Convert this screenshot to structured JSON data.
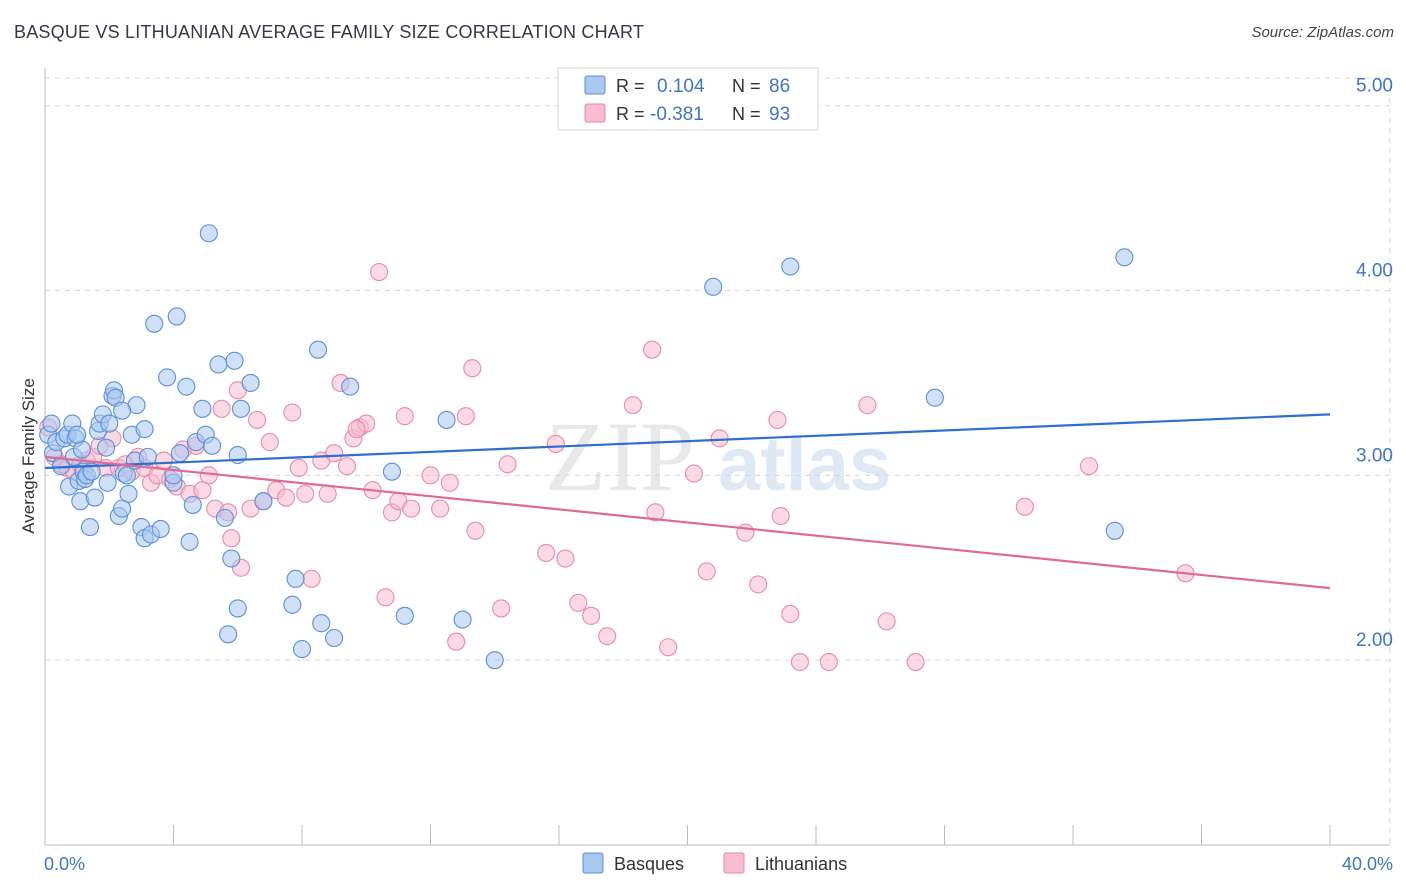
{
  "title": "BASQUE VS LITHUANIAN AVERAGE FAMILY SIZE CORRELATION CHART",
  "source": "Source: ZipAtlas.com",
  "watermark": {
    "zip": "ZIP",
    "atlas": "atlas"
  },
  "colors": {
    "basque_fill": "#a9c8f0",
    "basque_stroke": "#5b8fd6",
    "basque_line": "#2f6fcb",
    "lith_fill": "#f7bcd0",
    "lith_stroke": "#e88aab",
    "lith_line": "#e06a96",
    "tick_text": "#3f74c8",
    "grid": "#d8d8d8"
  },
  "legend": {
    "r_label": "R =",
    "n_label": "N =",
    "rows": [
      {
        "r": "0.104",
        "n": "86"
      },
      {
        "r": "-0.381",
        "n": "93"
      }
    ]
  },
  "chart_data": {
    "type": "scatter",
    "title": "BASQUE VS LITHUANIAN AVERAGE FAMILY SIZE CORRELATION CHART",
    "xlabel": "",
    "ylabel": "Average Family Size",
    "xlim": [
      0,
      40
    ],
    "ylim": [
      1.0,
      5.15
    ],
    "x_tick_labels": [
      "0.0%",
      "40.0%"
    ],
    "y_ticks": [
      2.0,
      3.0,
      4.0,
      5.0
    ],
    "y_tick_labels": [
      "2.00",
      "3.00",
      "4.00",
      "5.00"
    ],
    "legend_position": "bottom",
    "grid": true,
    "series": [
      {
        "name": "Basques",
        "trend": [
          [
            0,
            3.04
          ],
          [
            40,
            3.33
          ]
        ],
        "points": [
          [
            0.1,
            3.22
          ],
          [
            0.2,
            3.28
          ],
          [
            0.25,
            3.12
          ],
          [
            0.35,
            3.18
          ],
          [
            0.5,
            3.05
          ],
          [
            0.6,
            3.2
          ],
          [
            0.7,
            3.22
          ],
          [
            0.75,
            2.94
          ],
          [
            0.85,
            3.28
          ],
          [
            0.9,
            3.1
          ],
          [
            0.95,
            3.2
          ],
          [
            1.05,
            2.97
          ],
          [
            1.1,
            2.86
          ],
          [
            1.15,
            3.14
          ],
          [
            1.2,
            3.02
          ],
          [
            1.25,
            2.98
          ],
          [
            1.3,
            3.0
          ],
          [
            1.4,
            2.72
          ],
          [
            1.45,
            3.02
          ],
          [
            1.55,
            2.88
          ],
          [
            1.65,
            3.24
          ],
          [
            1.7,
            3.28
          ],
          [
            1.8,
            3.33
          ],
          [
            1.9,
            3.15
          ],
          [
            1.95,
            2.96
          ],
          [
            2.0,
            3.28
          ],
          [
            2.1,
            3.43
          ],
          [
            2.15,
            3.46
          ],
          [
            2.2,
            3.42
          ],
          [
            2.3,
            2.78
          ],
          [
            2.4,
            2.82
          ],
          [
            2.45,
            3.01
          ],
          [
            2.55,
            3.0
          ],
          [
            2.6,
            2.9
          ],
          [
            2.7,
            3.22
          ],
          [
            2.8,
            3.08
          ],
          [
            2.85,
            3.38
          ],
          [
            3.0,
            2.72
          ],
          [
            3.1,
            2.66
          ],
          [
            3.2,
            3.1
          ],
          [
            3.3,
            2.68
          ],
          [
            3.4,
            3.82
          ],
          [
            3.6,
            2.71
          ],
          [
            3.8,
            3.53
          ],
          [
            4.0,
            2.96
          ],
          [
            4.1,
            3.86
          ],
          [
            4.2,
            3.12
          ],
          [
            4.4,
            3.48
          ],
          [
            4.5,
            2.64
          ],
          [
            4.6,
            2.84
          ],
          [
            4.7,
            3.18
          ],
          [
            4.9,
            3.36
          ],
          [
            5.0,
            3.22
          ],
          [
            5.1,
            4.31
          ],
          [
            5.2,
            3.16
          ],
          [
            5.4,
            3.6
          ],
          [
            5.6,
            2.77
          ],
          [
            5.8,
            2.55
          ],
          [
            5.9,
            3.62
          ],
          [
            6.0,
            2.28
          ],
          [
            6.1,
            3.36
          ],
          [
            6.4,
            3.5
          ],
          [
            6.8,
            2.86
          ],
          [
            5.7,
            2.14
          ],
          [
            7.8,
            2.44
          ],
          [
            7.7,
            2.3
          ],
          [
            8.0,
            2.06
          ],
          [
            8.5,
            3.68
          ],
          [
            8.6,
            2.2
          ],
          [
            9.0,
            2.12
          ],
          [
            9.5,
            3.48
          ],
          [
            10.8,
            3.02
          ],
          [
            11.2,
            2.24
          ],
          [
            12.5,
            3.3
          ],
          [
            13.0,
            2.22
          ],
          [
            14.0,
            2.0
          ],
          [
            20.8,
            4.02
          ],
          [
            23.2,
            4.13
          ],
          [
            27.7,
            3.42
          ],
          [
            33.3,
            2.7
          ],
          [
            33.6,
            4.18
          ],
          [
            6.0,
            3.11
          ],
          [
            4.0,
            3.0
          ],
          [
            3.1,
            3.25
          ],
          [
            2.4,
            3.35
          ],
          [
            1.0,
            3.22
          ]
        ]
      },
      {
        "name": "Lithuanians",
        "trend": [
          [
            0,
            3.1
          ],
          [
            40,
            2.39
          ]
        ],
        "points": [
          [
            0.1,
            3.26
          ],
          [
            0.3,
            3.1
          ],
          [
            0.5,
            3.06
          ],
          [
            0.7,
            3.04
          ],
          [
            0.9,
            3.02
          ],
          [
            1.1,
            3.06
          ],
          [
            1.3,
            3.08
          ],
          [
            1.5,
            3.1
          ],
          [
            1.7,
            3.16
          ],
          [
            1.9,
            3.04
          ],
          [
            2.1,
            3.2
          ],
          [
            2.3,
            3.04
          ],
          [
            2.5,
            3.06
          ],
          [
            2.7,
            3.02
          ],
          [
            2.9,
            3.1
          ],
          [
            3.1,
            3.04
          ],
          [
            3.3,
            2.96
          ],
          [
            3.5,
            3.0
          ],
          [
            3.7,
            3.08
          ],
          [
            3.9,
            2.98
          ],
          [
            4.1,
            2.94
          ],
          [
            4.3,
            3.14
          ],
          [
            4.5,
            2.9
          ],
          [
            4.7,
            3.16
          ],
          [
            4.9,
            2.92
          ],
          [
            5.1,
            3.0
          ],
          [
            5.3,
            2.82
          ],
          [
            5.5,
            3.36
          ],
          [
            5.7,
            2.8
          ],
          [
            5.8,
            2.66
          ],
          [
            6.0,
            3.46
          ],
          [
            6.1,
            2.5
          ],
          [
            6.4,
            2.82
          ],
          [
            6.6,
            3.3
          ],
          [
            6.8,
            2.86
          ],
          [
            7.0,
            3.18
          ],
          [
            7.2,
            2.92
          ],
          [
            7.5,
            2.88
          ],
          [
            7.7,
            3.34
          ],
          [
            7.9,
            3.04
          ],
          [
            8.1,
            2.9
          ],
          [
            8.3,
            2.44
          ],
          [
            8.6,
            3.08
          ],
          [
            8.8,
            2.9
          ],
          [
            9.0,
            3.12
          ],
          [
            9.2,
            3.5
          ],
          [
            9.4,
            3.05
          ],
          [
            9.6,
            3.2
          ],
          [
            9.8,
            3.26
          ],
          [
            10.0,
            3.28
          ],
          [
            10.2,
            2.92
          ],
          [
            10.4,
            4.1
          ],
          [
            10.6,
            2.34
          ],
          [
            10.8,
            2.8
          ],
          [
            11.0,
            2.86
          ],
          [
            11.2,
            3.32
          ],
          [
            11.4,
            2.82
          ],
          [
            12.0,
            3.0
          ],
          [
            12.3,
            2.82
          ],
          [
            12.6,
            2.96
          ],
          [
            12.8,
            2.1
          ],
          [
            13.1,
            3.32
          ],
          [
            13.3,
            3.58
          ],
          [
            13.4,
            2.7
          ],
          [
            14.2,
            2.28
          ],
          [
            14.4,
            3.06
          ],
          [
            15.6,
            2.58
          ],
          [
            15.9,
            3.17
          ],
          [
            16.2,
            2.55
          ],
          [
            16.6,
            2.31
          ],
          [
            17.0,
            2.24
          ],
          [
            17.5,
            2.13
          ],
          [
            18.3,
            3.38
          ],
          [
            18.9,
            3.68
          ],
          [
            19.0,
            2.8
          ],
          [
            19.4,
            2.07
          ],
          [
            20.2,
            3.01
          ],
          [
            20.6,
            2.48
          ],
          [
            21.0,
            3.2
          ],
          [
            21.8,
            2.69
          ],
          [
            22.2,
            2.41
          ],
          [
            22.8,
            3.3
          ],
          [
            22.9,
            2.78
          ],
          [
            23.2,
            2.25
          ],
          [
            23.5,
            1.99
          ],
          [
            24.4,
            1.99
          ],
          [
            25.6,
            3.38
          ],
          [
            26.2,
            2.21
          ],
          [
            27.1,
            1.99
          ],
          [
            30.5,
            2.83
          ],
          [
            32.5,
            3.05
          ],
          [
            35.5,
            2.47
          ],
          [
            9.7,
            3.25
          ]
        ]
      }
    ]
  }
}
